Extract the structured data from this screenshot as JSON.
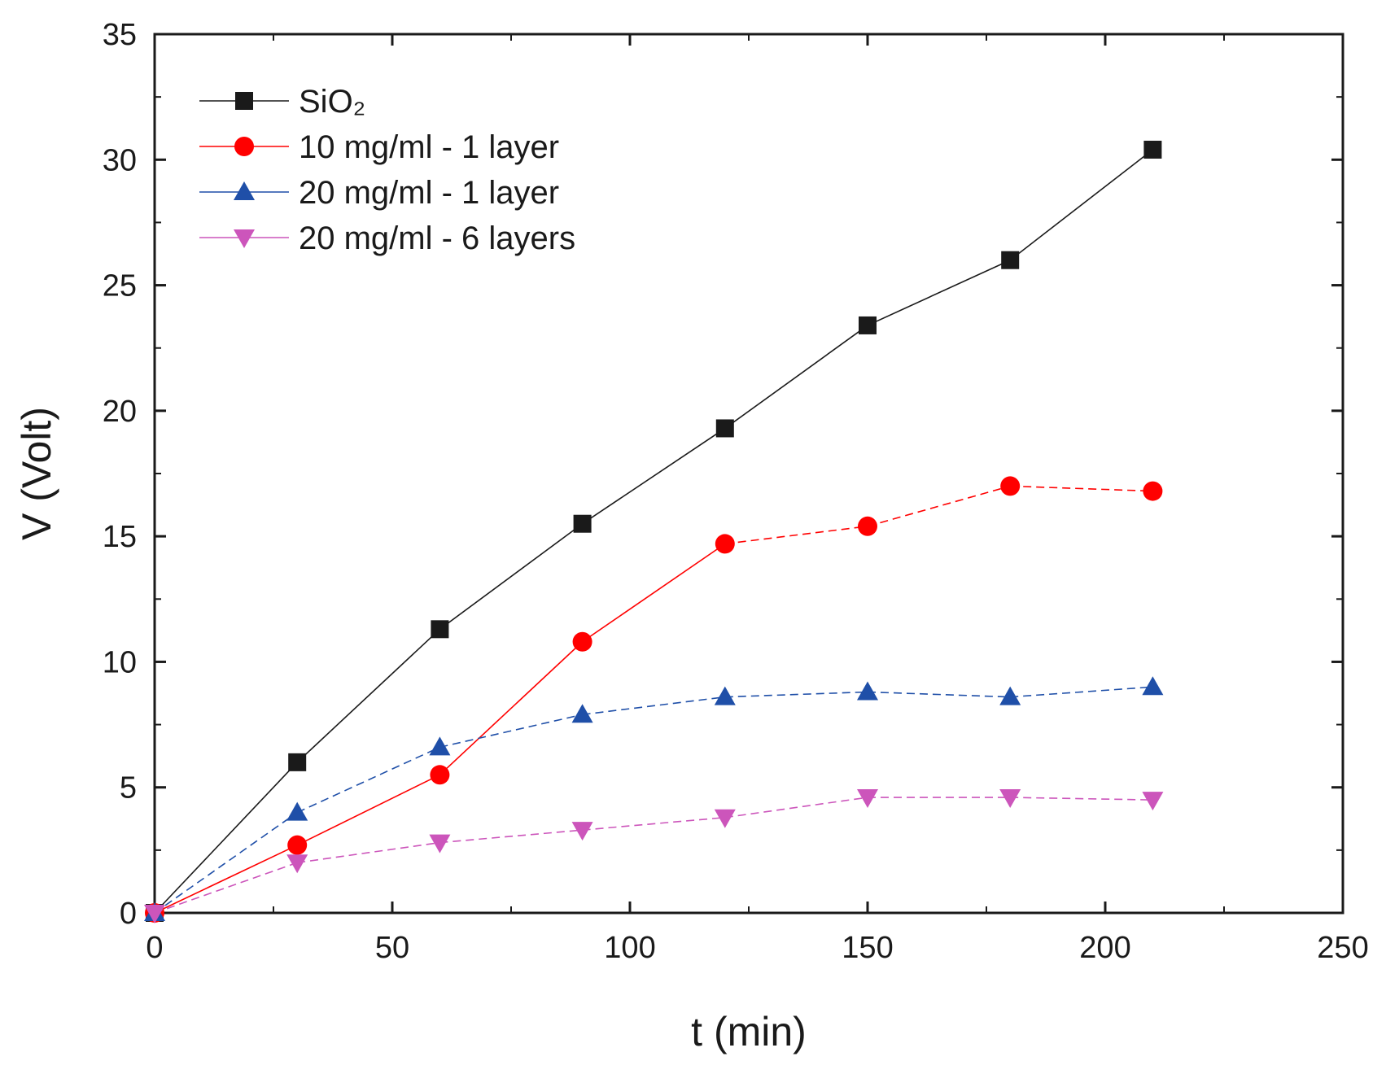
{
  "chart_data": {
    "type": "line",
    "title": "",
    "xlabel": "t (min)",
    "ylabel": "V (Volt)",
    "xlim": [
      0,
      250
    ],
    "ylim": [
      0,
      35
    ],
    "xticks": [
      0,
      50,
      100,
      150,
      200,
      250
    ],
    "yticks": [
      0,
      5,
      10,
      15,
      20,
      25,
      30,
      35
    ],
    "grid": false,
    "legend_position": "top-left",
    "x": [
      0,
      30,
      60,
      90,
      120,
      150,
      180,
      210
    ],
    "series": [
      {
        "name": "SiO₂",
        "color": "#1a1a1a",
        "marker": "square",
        "line_style": "solid",
        "values": [
          0,
          6.0,
          11.3,
          15.5,
          19.3,
          23.4,
          26.0,
          30.4
        ]
      },
      {
        "name": "10 mg/ml - 1 layer",
        "color": "#ff0000",
        "marker": "circle",
        "line_style": "solid-then-dashed",
        "values": [
          0,
          2.7,
          5.5,
          10.8,
          14.7,
          15.4,
          17.0,
          16.8
        ]
      },
      {
        "name": "20 mg/ml - 1 layer",
        "color": "#1f4fa8",
        "marker": "triangle-up",
        "line_style": "dashed",
        "values": [
          0,
          4.0,
          6.6,
          7.9,
          8.6,
          8.8,
          8.6,
          9.0
        ]
      },
      {
        "name": "20 mg/ml - 6 layers",
        "color": "#cc55bb",
        "marker": "triangle-down",
        "line_style": "dashed",
        "values": [
          0,
          2.0,
          2.8,
          3.3,
          3.8,
          4.6,
          4.6,
          4.5
        ]
      }
    ]
  }
}
